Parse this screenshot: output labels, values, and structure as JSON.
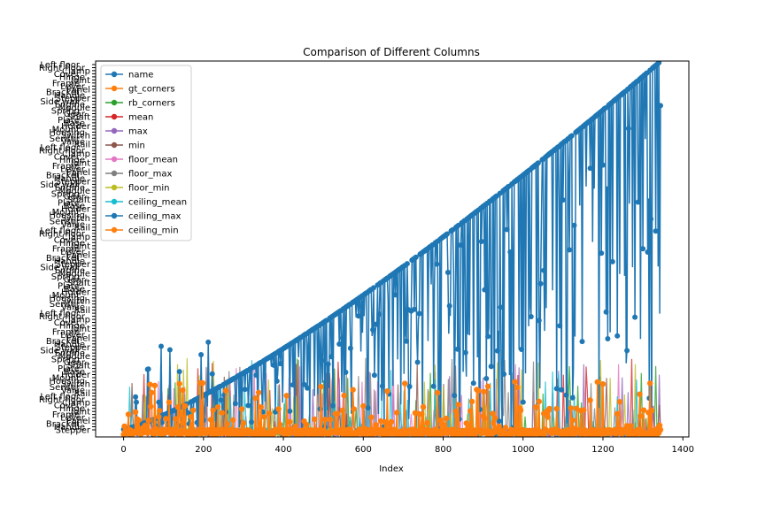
{
  "chart_data": {
    "type": "line",
    "title": "Comparison of Different Columns",
    "xlabel": "Index",
    "ylabel": "",
    "xlim": [
      -70,
      1415
    ],
    "ylim": [
      0,
      100
    ],
    "x_ticks": [
      0,
      200,
      400,
      600,
      800,
      1000,
      1200,
      1400
    ],
    "grid": false,
    "legend_position": "top-left",
    "n_points": 1345,
    "y_tick_labels": [
      "Stepper",
      "Handle",
      "Bracket",
      "Panel",
      "Lever",
      "Frame",
      "Joint",
      "Hinge",
      "Cover",
      "Clamp",
      "Right floor",
      "Left floor",
      "Rail",
      "Valve",
      "Sensor",
      "Switch",
      "Housing",
      "Mount",
      "Holder",
      "Base",
      "Plate",
      "Shaft",
      "Gear",
      "Spring",
      "Module",
      "Engine",
      "Side wall"
    ],
    "series": [
      {
        "name": "name",
        "color": "#1f77b4"
      },
      {
        "name": "gt_corners",
        "color": "#ff7f0e"
      },
      {
        "name": "rb_corners",
        "color": "#2ca02c"
      },
      {
        "name": "mean",
        "color": "#d62728"
      },
      {
        "name": "max",
        "color": "#9467bd"
      },
      {
        "name": "min",
        "color": "#8c564b"
      },
      {
        "name": "floor_mean",
        "color": "#e377c2"
      },
      {
        "name": "floor_max",
        "color": "#7f7f7f"
      },
      {
        "name": "floor_min",
        "color": "#bcbd22"
      },
      {
        "name": "ceiling_mean",
        "color": "#17becf"
      },
      {
        "name": "ceiling_max",
        "color": "#1f77b4"
      },
      {
        "name": "ceiling_min",
        "color": "#ff7f0e"
      }
    ]
  }
}
